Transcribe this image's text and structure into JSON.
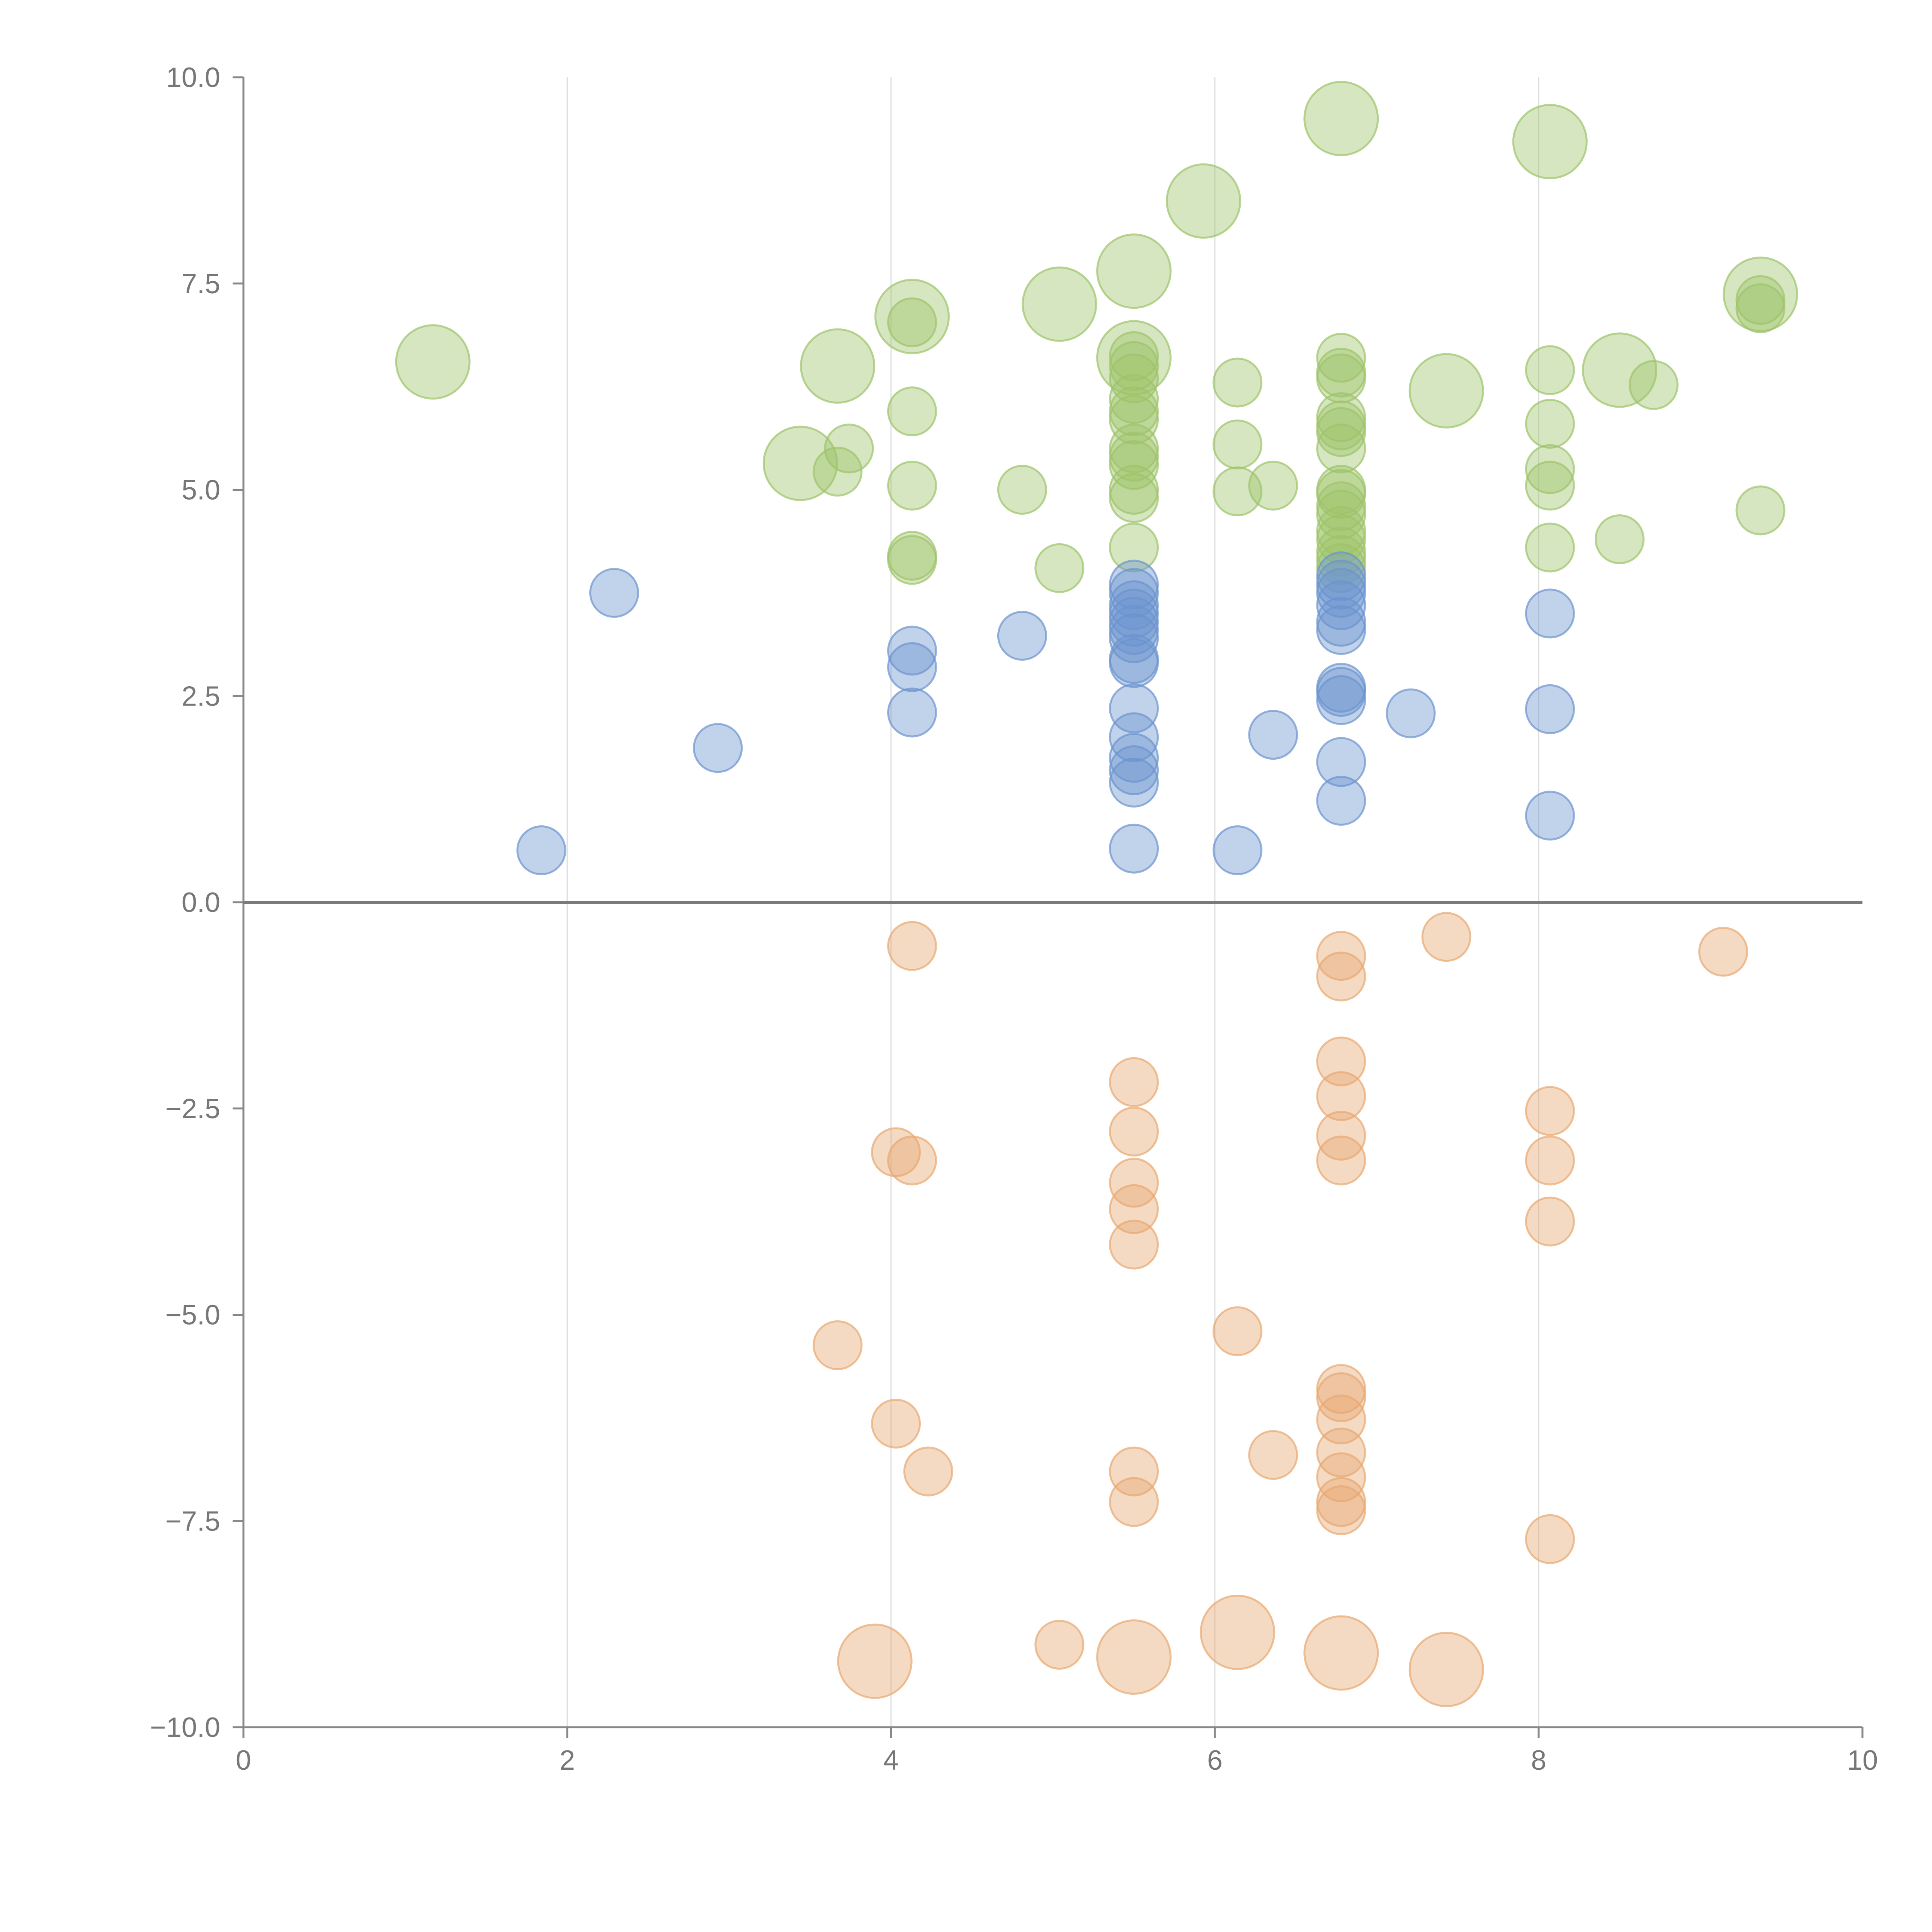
{
  "chart_data": {
    "type": "scatter",
    "title": "",
    "xlabel": "",
    "ylabel": "",
    "xlim": [
      0,
      10
    ],
    "ylim": [
      -10,
      10
    ],
    "grid": {
      "x": true,
      "y": false
    },
    "x_ticks": [
      {
        "value": 0,
        "label": "0"
      },
      {
        "value": 2,
        "label": "2"
      },
      {
        "value": 4,
        "label": "4"
      },
      {
        "value": 6,
        "label": "6"
      },
      {
        "value": 8,
        "label": "8"
      },
      {
        "value": 10,
        "label": "10"
      }
    ],
    "y_ticks": [
      {
        "value": 10,
        "label": "10.0"
      },
      {
        "value": 7.5,
        "label": "7.5"
      },
      {
        "value": 5,
        "label": "5.0"
      },
      {
        "value": 2.5,
        "label": "2.5"
      },
      {
        "value": 0,
        "label": "0.0"
      },
      {
        "value": -2.5,
        "label": "−2.5"
      },
      {
        "value": -5,
        "label": "−5.0"
      },
      {
        "value": -7.5,
        "label": "−7.5"
      },
      {
        "value": -10,
        "label": "−10.0"
      }
    ],
    "zero_line": 0,
    "series": [
      {
        "name": "green",
        "color": "#9dc36a",
        "points": [
          [
            1.17,
            6.55,
            1
          ],
          [
            3.44,
            5.32,
            1
          ],
          [
            3.67,
            6.5,
            1
          ],
          [
            4.13,
            7.1,
            1
          ],
          [
            5.04,
            7.25,
            1
          ],
          [
            5.5,
            7.65,
            1
          ],
          [
            5.93,
            8.5,
            1
          ],
          [
            6.78,
            9.5,
            1
          ],
          [
            8.07,
            9.22,
            1
          ],
          [
            7.43,
            6.2,
            1
          ],
          [
            8.5,
            6.45,
            1
          ],
          [
            9.37,
            7.37,
            1
          ],
          [
            5.5,
            6.6,
            1
          ],
          [
            3.67,
            5.22,
            0
          ],
          [
            3.74,
            5.5,
            0
          ],
          [
            4.13,
            7.03,
            0
          ],
          [
            4.13,
            5.95,
            0
          ],
          [
            4.13,
            5.05,
            0
          ],
          [
            4.13,
            4.2,
            0
          ],
          [
            4.13,
            4.15,
            0
          ],
          [
            4.81,
            5.0,
            0
          ],
          [
            5.04,
            4.05,
            0
          ],
          [
            5.5,
            6.62,
            0
          ],
          [
            5.5,
            6.5,
            0
          ],
          [
            5.5,
            6.35,
            0
          ],
          [
            5.5,
            6.1,
            0
          ],
          [
            5.5,
            5.95,
            0
          ],
          [
            5.5,
            5.85,
            0
          ],
          [
            5.5,
            5.5,
            0
          ],
          [
            5.5,
            5.4,
            0
          ],
          [
            5.5,
            5.3,
            0
          ],
          [
            5.5,
            5.0,
            0
          ],
          [
            5.5,
            4.9,
            0
          ],
          [
            5.5,
            4.3,
            0
          ],
          [
            6.14,
            6.3,
            0
          ],
          [
            6.14,
            5.55,
            0
          ],
          [
            6.14,
            4.98,
            0
          ],
          [
            6.36,
            5.05,
            0
          ],
          [
            6.78,
            6.6,
            0
          ],
          [
            6.78,
            6.42,
            0
          ],
          [
            6.78,
            6.35,
            0
          ],
          [
            6.78,
            5.88,
            0
          ],
          [
            6.78,
            5.78,
            0
          ],
          [
            6.78,
            5.7,
            0
          ],
          [
            6.78,
            5.5,
            0
          ],
          [
            6.78,
            5.0,
            0
          ],
          [
            6.78,
            4.95,
            0
          ],
          [
            6.78,
            4.8,
            0
          ],
          [
            6.78,
            4.7,
            0
          ],
          [
            6.78,
            4.5,
            0
          ],
          [
            6.78,
            4.4,
            0
          ],
          [
            6.78,
            4.25,
            0
          ],
          [
            6.78,
            4.15,
            0
          ],
          [
            6.78,
            4.05,
            0
          ],
          [
            8.07,
            6.45,
            0
          ],
          [
            8.07,
            5.8,
            0
          ],
          [
            8.07,
            5.25,
            0
          ],
          [
            8.07,
            5.05,
            0
          ],
          [
            8.07,
            4.3,
            0
          ],
          [
            8.5,
            4.4,
            0
          ],
          [
            8.71,
            6.27,
            0
          ],
          [
            9.37,
            7.3,
            0
          ],
          [
            9.37,
            7.2,
            0
          ],
          [
            9.37,
            4.75,
            0
          ]
        ]
      },
      {
        "name": "blue",
        "color": "#6b93cf",
        "points": [
          [
            1.84,
            0.63,
            0
          ],
          [
            2.29,
            3.75,
            0
          ],
          [
            2.93,
            1.87,
            0
          ],
          [
            4.13,
            3.05,
            0
          ],
          [
            4.13,
            2.85,
            0
          ],
          [
            4.13,
            2.3,
            0
          ],
          [
            4.81,
            3.23,
            0
          ],
          [
            5.5,
            3.85,
            0
          ],
          [
            5.5,
            3.75,
            0
          ],
          [
            5.5,
            3.6,
            0
          ],
          [
            5.5,
            3.5,
            0
          ],
          [
            5.5,
            3.4,
            0
          ],
          [
            5.5,
            3.3,
            0
          ],
          [
            5.5,
            3.2,
            0
          ],
          [
            5.5,
            2.95,
            0
          ],
          [
            5.5,
            2.9,
            0
          ],
          [
            5.5,
            2.35,
            0
          ],
          [
            5.5,
            2.0,
            0
          ],
          [
            5.5,
            1.75,
            0
          ],
          [
            5.5,
            1.6,
            0
          ],
          [
            5.5,
            1.45,
            0
          ],
          [
            5.5,
            0.65,
            0
          ],
          [
            6.14,
            0.63,
            0
          ],
          [
            6.36,
            2.03,
            0
          ],
          [
            6.78,
            3.95,
            0
          ],
          [
            6.78,
            3.85,
            0
          ],
          [
            6.78,
            3.75,
            0
          ],
          [
            6.78,
            3.6,
            0
          ],
          [
            6.78,
            3.4,
            0
          ],
          [
            6.78,
            3.3,
            0
          ],
          [
            6.78,
            2.6,
            0
          ],
          [
            6.78,
            2.55,
            0
          ],
          [
            6.78,
            2.45,
            0
          ],
          [
            6.78,
            1.7,
            0
          ],
          [
            6.78,
            1.23,
            0
          ],
          [
            7.21,
            2.29,
            0
          ],
          [
            8.07,
            3.5,
            0
          ],
          [
            8.07,
            2.34,
            0
          ],
          [
            8.07,
            1.05,
            0
          ]
        ]
      },
      {
        "name": "orange",
        "color": "#e8a870",
        "points": [
          [
            3.9,
            -9.2,
            1
          ],
          [
            5.5,
            -9.15,
            1
          ],
          [
            6.14,
            -8.85,
            1
          ],
          [
            6.78,
            -9.1,
            1
          ],
          [
            7.43,
            -9.3,
            1
          ],
          [
            3.67,
            -5.37,
            0
          ],
          [
            4.03,
            -3.03,
            0
          ],
          [
            4.03,
            -6.32,
            0
          ],
          [
            4.13,
            -0.53,
            0
          ],
          [
            4.13,
            -3.13,
            0
          ],
          [
            4.23,
            -6.9,
            0
          ],
          [
            5.04,
            -9.0,
            0
          ],
          [
            5.5,
            -2.18,
            0
          ],
          [
            5.5,
            -2.78,
            0
          ],
          [
            5.5,
            -3.4,
            0
          ],
          [
            5.5,
            -3.72,
            0
          ],
          [
            5.5,
            -4.15,
            0
          ],
          [
            5.5,
            -6.9,
            0
          ],
          [
            5.5,
            -7.27,
            0
          ],
          [
            6.14,
            -5.2,
            0
          ],
          [
            6.36,
            -6.7,
            0
          ],
          [
            6.78,
            -0.65,
            0
          ],
          [
            6.78,
            -0.9,
            0
          ],
          [
            6.78,
            -1.93,
            0
          ],
          [
            6.78,
            -2.35,
            0
          ],
          [
            6.78,
            -2.83,
            0
          ],
          [
            6.78,
            -3.13,
            0
          ],
          [
            6.78,
            -5.9,
            0
          ],
          [
            6.78,
            -6.0,
            0
          ],
          [
            6.78,
            -6.27,
            0
          ],
          [
            6.78,
            -6.67,
            0
          ],
          [
            6.78,
            -6.97,
            0
          ],
          [
            6.78,
            -7.27,
            0
          ],
          [
            6.78,
            -7.37,
            0
          ],
          [
            7.43,
            -0.42,
            0
          ],
          [
            8.07,
            -2.53,
            0
          ],
          [
            8.07,
            -3.13,
            0
          ],
          [
            8.07,
            -3.87,
            0
          ],
          [
            8.07,
            -7.72,
            0
          ],
          [
            9.14,
            -0.6,
            0
          ]
        ]
      }
    ]
  }
}
